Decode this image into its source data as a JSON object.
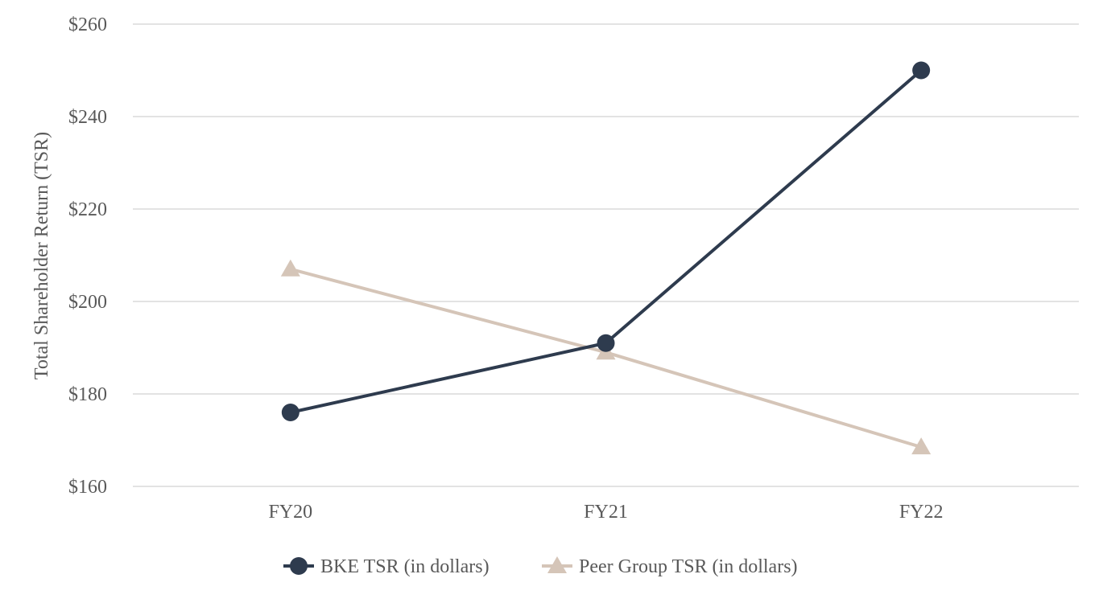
{
  "chart_data": {
    "type": "line",
    "title": "",
    "xlabel": "",
    "ylabel": "Total Shareholder Return (TSR)",
    "categories": [
      "FY20",
      "FY21",
      "FY22"
    ],
    "ylim": [
      160,
      260
    ],
    "yticks": [
      160,
      180,
      200,
      220,
      240,
      260
    ],
    "ytick_labels": [
      "$160",
      "$180",
      "$200",
      "$220",
      "$240",
      "$260"
    ],
    "grid": "horizontal",
    "legend_position": "bottom",
    "series": [
      {
        "name": "BKE TSR (in dollars)",
        "values": [
          176,
          191,
          250
        ],
        "color": "#2e3b4e",
        "marker": "circle"
      },
      {
        "name": "Peer Group TSR (in dollars)",
        "values": [
          207,
          189,
          168.5
        ],
        "color": "#d5c5b8",
        "marker": "triangle"
      }
    ]
  }
}
